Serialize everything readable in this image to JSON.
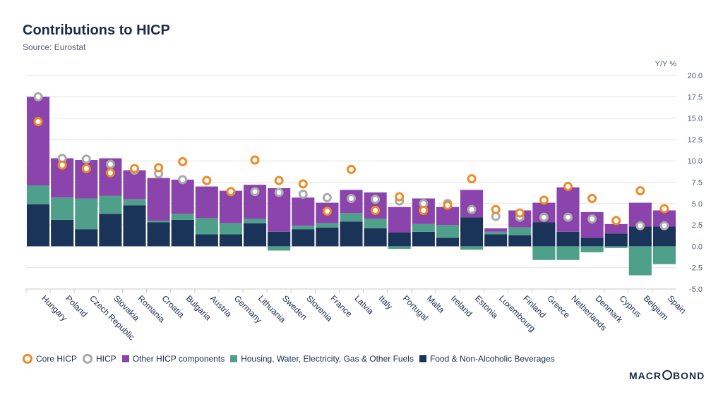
{
  "header": {
    "title": "Contributions to HICP",
    "subtitle": "Source: Eurostat"
  },
  "brand": {
    "text_left": "MACR",
    "text_right": "BOND"
  },
  "chart_data": {
    "type": "bar",
    "stacked": true,
    "unit_label": "Y/Y %",
    "ylim": [
      -5,
      20
    ],
    "yticks": [
      20.0,
      17.5,
      15.0,
      12.5,
      10.0,
      7.5,
      5.0,
      2.5,
      0.0,
      -2.5,
      -5.0
    ],
    "yaxis_position": "right",
    "grid": true,
    "legend_placement": "bottom-left",
    "categories": [
      "Hungary",
      "Poland",
      "Czech Republic",
      "Slovakia",
      "Romania",
      "Croatia",
      "Bulgaria",
      "Austria",
      "Germany",
      "Lithuania",
      "Sweden",
      "Slovenia",
      "France",
      "Latvia",
      "Italy",
      "Portugal",
      "Malta",
      "Ireland",
      "Estonia",
      "Luxembourg",
      "Finland",
      "Greece",
      "Netherlands",
      "Denmark",
      "Cyprus",
      "Belgium",
      "Spain"
    ],
    "series": [
      {
        "name": "Food & Non-Alcoholic Beverages",
        "kind": "bar",
        "color": "#1a3358",
        "values": [
          4.9,
          3.1,
          2.0,
          3.8,
          4.8,
          2.8,
          3.1,
          1.4,
          1.4,
          2.7,
          1.7,
          2.0,
          2.2,
          2.9,
          2.1,
          1.6,
          1.7,
          1.0,
          3.4,
          1.4,
          1.3,
          2.8,
          1.7,
          1.0,
          1.5,
          2.3,
          2.3
        ]
      },
      {
        "name": "Housing, Water, Electricity, Gas & Other Fuels",
        "kind": "bar",
        "color": "#4fa08a",
        "values": [
          2.2,
          2.6,
          3.6,
          2.1,
          0.7,
          0.2,
          0.7,
          1.9,
          1.3,
          0.5,
          -0.5,
          0.4,
          0.5,
          1.0,
          1.1,
          -0.3,
          0.9,
          1.5,
          -0.4,
          0.3,
          0.9,
          -1.6,
          -1.6,
          -0.7,
          -0.2,
          -3.4,
          -2.1
        ]
      },
      {
        "name": "Other HICP components",
        "kind": "bar",
        "color": "#8a44ab",
        "values": [
          10.4,
          4.6,
          4.5,
          4.4,
          3.4,
          5.0,
          4.0,
          3.7,
          3.8,
          4.0,
          5.1,
          3.3,
          2.4,
          2.7,
          3.1,
          3.0,
          3.0,
          2.1,
          3.2,
          0.4,
          2.0,
          2.3,
          5.2,
          3.0,
          1.1,
          2.8,
          1.9
        ]
      },
      {
        "name": "HICP",
        "kind": "marker",
        "color": "#a9a9a9",
        "values": [
          17.5,
          10.3,
          10.2,
          9.6,
          8.9,
          8.5,
          7.8,
          7.7,
          6.4,
          6.4,
          6.3,
          6.1,
          5.7,
          5.6,
          5.5,
          5.3,
          5.0,
          5.0,
          4.3,
          3.5,
          3.4,
          3.4,
          3.4,
          3.2,
          3.0,
          2.4,
          2.4
        ]
      },
      {
        "name": "Core HICP",
        "kind": "marker",
        "color": "#f08a24",
        "values": [
          14.6,
          9.5,
          9.1,
          8.6,
          9.1,
          9.2,
          9.9,
          7.7,
          6.4,
          10.1,
          7.7,
          7.3,
          4.1,
          9.0,
          4.2,
          5.8,
          4.2,
          4.8,
          7.9,
          4.3,
          3.9,
          5.4,
          7.0,
          5.6,
          3.0,
          6.5,
          4.4
        ]
      }
    ]
  },
  "legend": {
    "items": [
      {
        "label": "Core HICP",
        "shape": "circle",
        "color": "#f08a24"
      },
      {
        "label": "HICP",
        "shape": "circle",
        "color": "#a9a9a9"
      },
      {
        "label": "Other HICP components",
        "shape": "square",
        "color": "#8a44ab"
      },
      {
        "label": "Housing, Water, Electricity, Gas & Other Fuels",
        "shape": "square",
        "color": "#4fa08a"
      },
      {
        "label": "Food & Non-Alcoholic Beverages",
        "shape": "square",
        "color": "#1a3358"
      }
    ]
  }
}
